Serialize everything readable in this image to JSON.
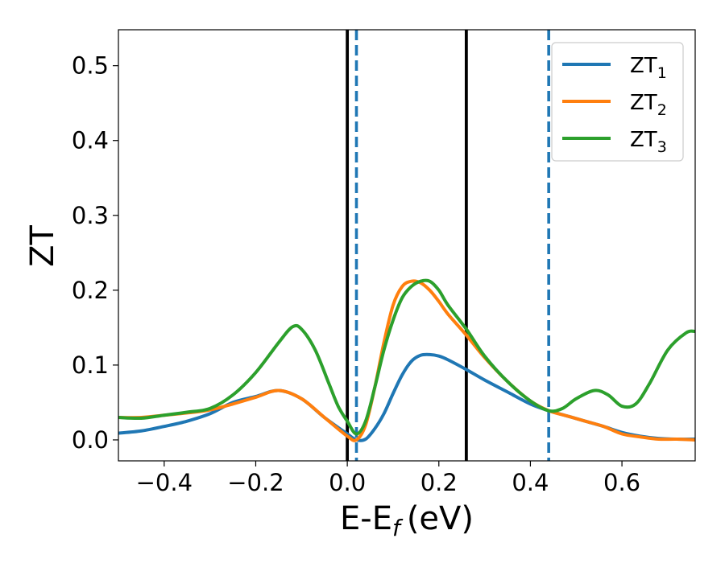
{
  "chart_data": {
    "type": "line",
    "title": "",
    "xlabel": "E-E",
    "xlabel_subscript": "f",
    "xlabel_unit": "(eV)",
    "ylabel": "ZT",
    "xlim": [
      -0.5,
      0.76
    ],
    "ylim": [
      -0.028,
      0.548
    ],
    "x_ticks": [
      -0.4,
      -0.2,
      0.0,
      0.2,
      0.4,
      0.6
    ],
    "x_tick_labels": [
      "−0.4",
      "−0.2",
      "0.0",
      "0.2",
      "0.4",
      "0.6"
    ],
    "y_ticks": [
      0.0,
      0.1,
      0.2,
      0.3,
      0.4,
      0.5
    ],
    "y_tick_labels": [
      "0.0",
      "0.1",
      "0.2",
      "0.3",
      "0.4",
      "0.5"
    ],
    "grid": false,
    "legend_position": "upper-right",
    "vlines": [
      {
        "x": 0.0,
        "style": "solid",
        "color": "#000000"
      },
      {
        "x": 0.26,
        "style": "solid",
        "color": "#000000"
      },
      {
        "x": 0.02,
        "style": "dashed",
        "color": "#1f77b4"
      },
      {
        "x": 0.44,
        "style": "dashed",
        "color": "#1f77b4"
      }
    ],
    "series": [
      {
        "name": "ZT",
        "subscript": "1",
        "color": "#1f77b4",
        "x": [
          -0.5,
          -0.45,
          -0.4,
          -0.35,
          -0.3,
          -0.25,
          -0.2,
          -0.15,
          -0.1,
          -0.05,
          0.0,
          0.02,
          0.04,
          0.06,
          0.08,
          0.1,
          0.12,
          0.14,
          0.16,
          0.18,
          0.2,
          0.22,
          0.26,
          0.3,
          0.35,
          0.4,
          0.44,
          0.48,
          0.52,
          0.56,
          0.6,
          0.64,
          0.68,
          0.72,
          0.76
        ],
        "y": [
          0.009,
          0.012,
          0.018,
          0.025,
          0.035,
          0.05,
          0.058,
          0.066,
          0.055,
          0.03,
          0.008,
          0.0,
          0.001,
          0.015,
          0.035,
          0.062,
          0.087,
          0.105,
          0.113,
          0.114,
          0.112,
          0.107,
          0.094,
          0.08,
          0.064,
          0.048,
          0.039,
          0.032,
          0.025,
          0.018,
          0.01,
          0.005,
          0.002,
          0.001,
          0.001
        ]
      },
      {
        "name": "ZT",
        "subscript": "2",
        "color": "#ff7f0e",
        "x": [
          -0.5,
          -0.45,
          -0.4,
          -0.35,
          -0.3,
          -0.25,
          -0.2,
          -0.15,
          -0.1,
          -0.05,
          0.0,
          0.02,
          0.04,
          0.06,
          0.08,
          0.1,
          0.12,
          0.14,
          0.16,
          0.18,
          0.2,
          0.22,
          0.26,
          0.3,
          0.35,
          0.4,
          0.44,
          0.48,
          0.52,
          0.56,
          0.6,
          0.64,
          0.68,
          0.72,
          0.76
        ],
        "y": [
          0.03,
          0.03,
          0.033,
          0.036,
          0.04,
          0.048,
          0.057,
          0.066,
          0.055,
          0.03,
          0.005,
          0.0,
          0.02,
          0.07,
          0.13,
          0.18,
          0.205,
          0.212,
          0.21,
          0.2,
          0.185,
          0.168,
          0.14,
          0.11,
          0.078,
          0.052,
          0.039,
          0.032,
          0.025,
          0.018,
          0.008,
          0.004,
          0.001,
          0.001,
          0.0
        ]
      },
      {
        "name": "ZT",
        "subscript": "3",
        "color": "#2ca02c",
        "x": [
          -0.5,
          -0.45,
          -0.4,
          -0.35,
          -0.3,
          -0.25,
          -0.2,
          -0.15,
          -0.12,
          -0.1,
          -0.07,
          -0.04,
          -0.02,
          0.0,
          0.02,
          0.04,
          0.06,
          0.08,
          0.1,
          0.12,
          0.14,
          0.16,
          0.18,
          0.2,
          0.22,
          0.26,
          0.3,
          0.35,
          0.4,
          0.44,
          0.47,
          0.5,
          0.54,
          0.57,
          0.6,
          0.63,
          0.66,
          0.7,
          0.74,
          0.76
        ],
        "y": [
          0.03,
          0.029,
          0.033,
          0.037,
          0.042,
          0.06,
          0.09,
          0.13,
          0.151,
          0.148,
          0.12,
          0.075,
          0.045,
          0.025,
          0.008,
          0.025,
          0.07,
          0.12,
          0.16,
          0.19,
          0.205,
          0.212,
          0.212,
          0.2,
          0.18,
          0.148,
          0.112,
          0.078,
          0.052,
          0.039,
          0.042,
          0.055,
          0.066,
          0.06,
          0.045,
          0.048,
          0.075,
          0.12,
          0.143,
          0.145
        ]
      }
    ]
  }
}
